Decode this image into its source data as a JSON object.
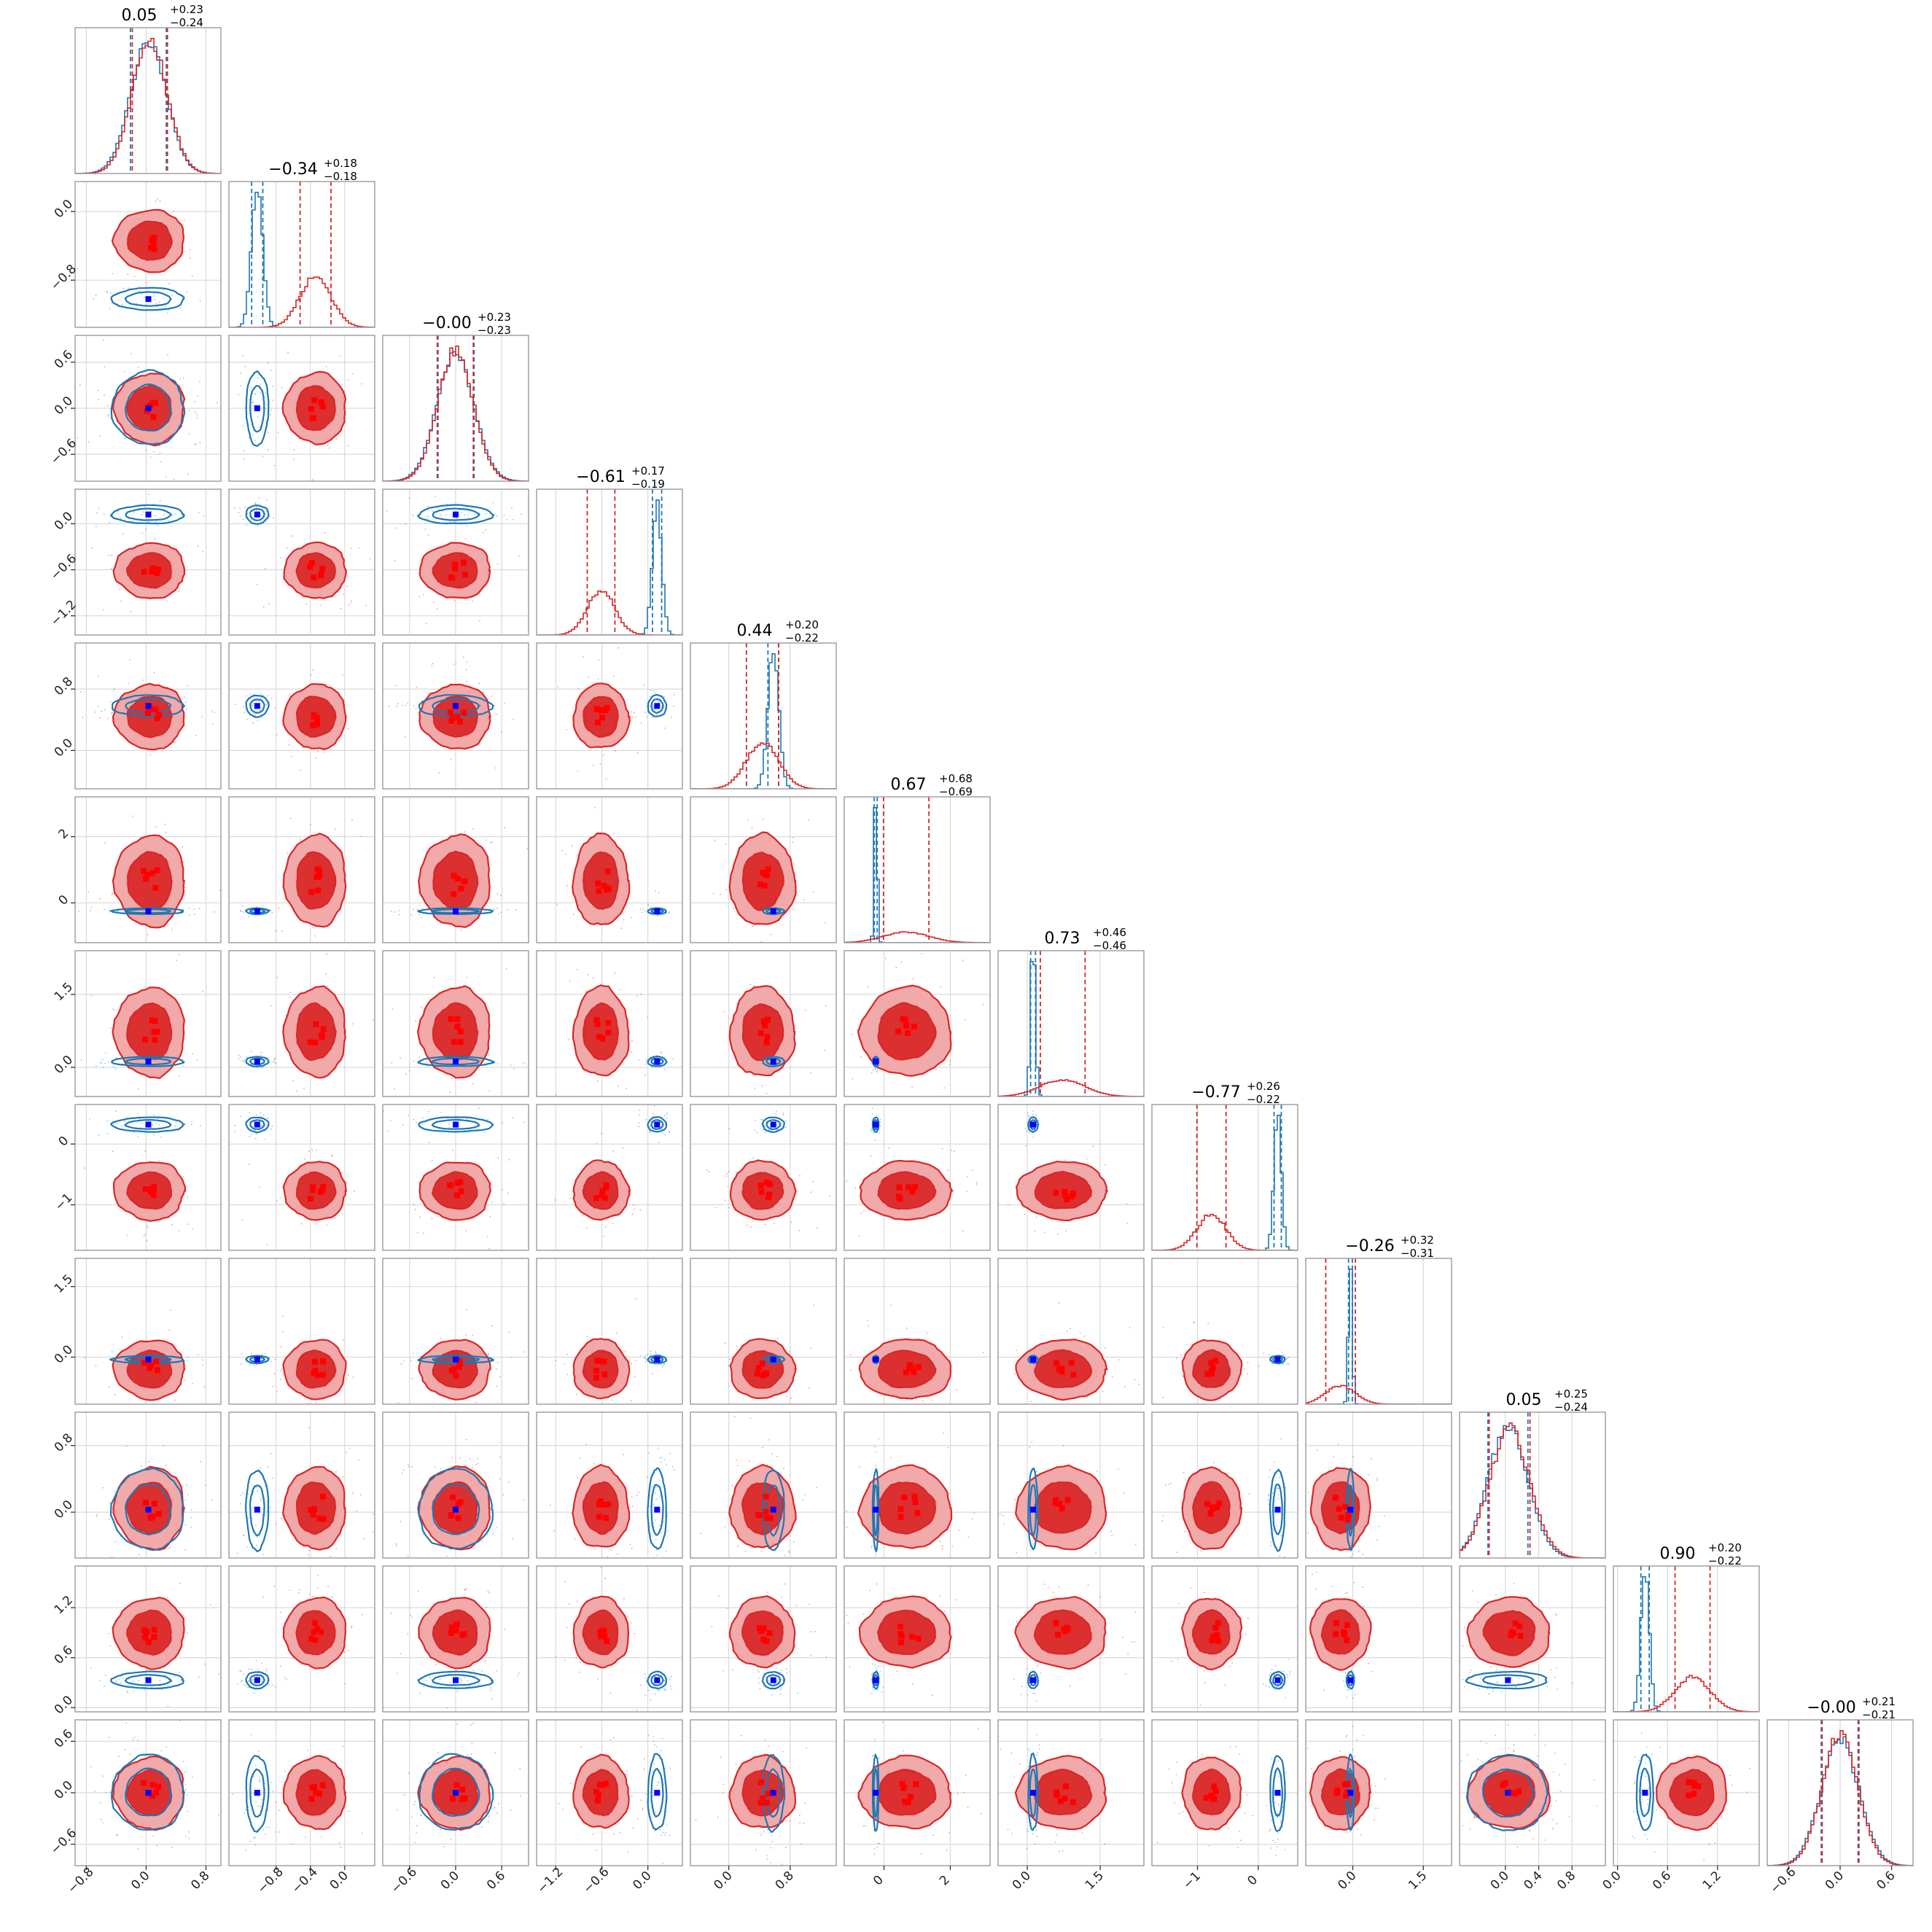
{
  "chart_data": {
    "type": "corner",
    "n_params": 12,
    "series": [
      {
        "name": "",
        "color": "#d62728",
        "marker_color": "#ff0000",
        "style": "filled-contours",
        "means": [
          0.05,
          -0.34,
          -0.0,
          -0.61,
          0.44,
          0.67,
          0.73,
          -0.77,
          -0.26,
          0.05,
          0.9,
          -0.0
        ],
        "sigmas": [
          0.235,
          0.18,
          0.23,
          0.18,
          0.21,
          0.685,
          0.46,
          0.24,
          0.315,
          0.245,
          0.21,
          0.21
        ]
      },
      {
        "name": "",
        "color": "#1f77b4",
        "marker_color": "#0000ff",
        "style": "line-contours",
        "means": [
          0.03,
          -1.02,
          0.0,
          0.12,
          0.58,
          -0.25,
          0.12,
          0.32,
          -0.05,
          0.03,
          0.33,
          0.0
        ],
        "sigmas": [
          0.24,
          0.065,
          0.24,
          0.06,
          0.07,
          0.045,
          0.05,
          0.06,
          0.04,
          0.24,
          0.05,
          0.22
        ]
      }
    ],
    "diag_titles": [
      {
        "value": "0.05",
        "plus": "+0.23",
        "minus": "−0.24"
      },
      {
        "value": "−0.34",
        "plus": "+0.18",
        "minus": "−0.18"
      },
      {
        "value": "−0.00",
        "plus": "+0.23",
        "minus": "−0.23"
      },
      {
        "value": "−0.61",
        "plus": "+0.17",
        "minus": "−0.19"
      },
      {
        "value": "0.44",
        "plus": "+0.20",
        "minus": "−0.22"
      },
      {
        "value": "0.67",
        "plus": "+0.68",
        "minus": "−0.69"
      },
      {
        "value": "0.73",
        "plus": "+0.46",
        "minus": "−0.46"
      },
      {
        "value": "−0.77",
        "plus": "+0.26",
        "minus": "−0.22"
      },
      {
        "value": "−0.26",
        "plus": "+0.32",
        "minus": "−0.31"
      },
      {
        "value": "0.05",
        "plus": "+0.25",
        "minus": "−0.24"
      },
      {
        "value": "0.90",
        "plus": "+0.20",
        "minus": "−0.22"
      },
      {
        "value": "−0.00",
        "plus": "+0.21",
        "minus": "−0.21"
      }
    ],
    "ranges": [
      [
        -0.95,
        1.0
      ],
      [
        -1.35,
        0.35
      ],
      [
        -0.95,
        0.95
      ],
      [
        -1.45,
        0.45
      ],
      [
        -0.5,
        1.4
      ],
      [
        -1.2,
        3.2
      ],
      [
        -0.6,
        2.4
      ],
      [
        -1.75,
        0.65
      ],
      [
        -1.0,
        2.1
      ],
      [
        -0.55,
        1.2
      ],
      [
        -0.05,
        1.7
      ],
      [
        -0.85,
        0.85
      ]
    ],
    "x_ticks": [
      {
        "values": [
          -0.8,
          0.0,
          0.8
        ],
        "labels": [
          "−0.8",
          "0.0",
          "0.8"
        ]
      },
      {
        "values": [
          -0.8,
          -0.4,
          0.0
        ],
        "labels": [
          "−0.8",
          "−0.4",
          "0.0"
        ]
      },
      {
        "values": [
          -0.6,
          0.0,
          0.6
        ],
        "labels": [
          "−0.6",
          "0.0",
          "0.6"
        ]
      },
      {
        "values": [
          -1.2,
          -0.6,
          0.0
        ],
        "labels": [
          "−1.2",
          "−0.6",
          "0.0"
        ]
      },
      {
        "values": [
          0.0,
          0.8
        ],
        "labels": [
          "0.0",
          "0.8"
        ]
      },
      {
        "values": [
          0,
          2
        ],
        "labels": [
          "0",
          "2"
        ]
      },
      {
        "values": [
          0.0,
          1.5
        ],
        "labels": [
          "0.0",
          "1.5"
        ]
      },
      {
        "values": [
          -1,
          0
        ],
        "labels": [
          "−1",
          "0"
        ]
      },
      {
        "values": [
          0.0,
          1.5
        ],
        "labels": [
          "0.0",
          "1.5"
        ]
      },
      {
        "values": [
          0.0,
          0.4,
          0.8
        ],
        "labels": [
          "0.0",
          "0.4",
          "0.8"
        ]
      },
      {
        "values": [
          0.0,
          0.6,
          1.2
        ],
        "labels": [
          "0.0",
          "0.6",
          "1.2"
        ]
      },
      {
        "values": [
          -0.6,
          0.0,
          0.6
        ],
        "labels": [
          "−0.6",
          "0.0",
          "0.6"
        ]
      }
    ],
    "y_ticks": [
      null,
      {
        "values": [
          -0.8,
          0.0
        ],
        "labels": [
          "−0.8",
          "0.0"
        ]
      },
      {
        "values": [
          -0.6,
          0.0,
          0.6
        ],
        "labels": [
          "−0.6",
          "0.0",
          "0.6"
        ]
      },
      {
        "values": [
          -1.2,
          -0.6,
          0.0
        ],
        "labels": [
          "−1.2",
          "−0.6",
          "0.0"
        ]
      },
      {
        "values": [
          0.0,
          0.8
        ],
        "labels": [
          "0.0",
          "0.8"
        ]
      },
      {
        "values": [
          0,
          2
        ],
        "labels": [
          "0",
          "2"
        ]
      },
      {
        "values": [
          0.0,
          1.5
        ],
        "labels": [
          "0.0",
          "1.5"
        ]
      },
      {
        "values": [
          -1,
          0
        ],
        "labels": [
          "−1",
          "0"
        ]
      },
      {
        "values": [
          0.0,
          1.5
        ],
        "labels": [
          "0.0",
          "1.5"
        ]
      },
      {
        "values": [
          0.0,
          0.8
        ],
        "labels": [
          "0.0",
          "0.8"
        ]
      },
      {
        "values": [
          0.0,
          0.6,
          1.2
        ],
        "labels": [
          "0.0",
          "0.6",
          "1.2"
        ]
      },
      {
        "values": [
          -0.6,
          0.0,
          0.6
        ],
        "labels": [
          "−0.6",
          "0.0",
          "0.6"
        ]
      }
    ],
    "grid": true,
    "legend": "none",
    "title": "",
    "xlabel": "",
    "ylabel": ""
  }
}
